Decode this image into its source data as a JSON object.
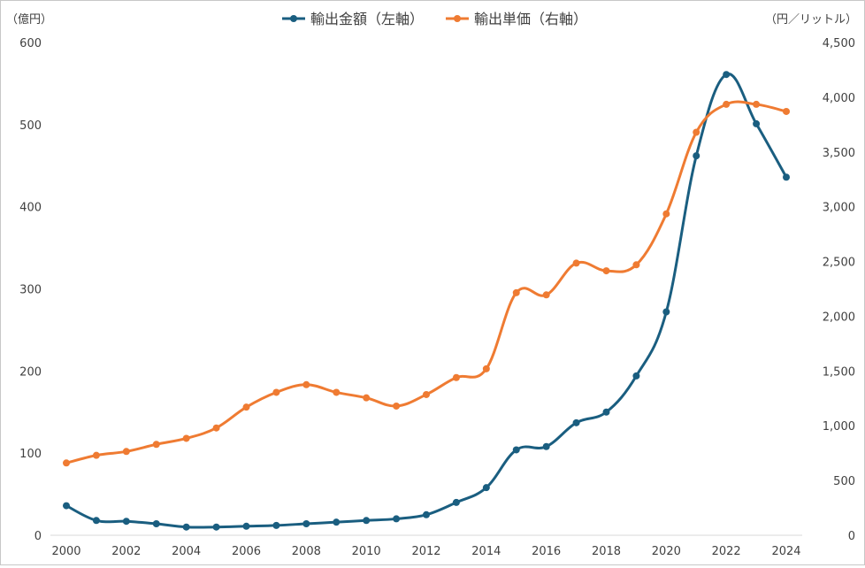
{
  "chart_data": {
    "type": "line",
    "title": "",
    "legend_position": "top",
    "left_axis_label": "（億円）",
    "right_axis_label": "（円／リットル）",
    "x": [
      "2000",
      "2001",
      "2002",
      "2003",
      "2004",
      "2005",
      "2006",
      "2007",
      "2008",
      "2009",
      "2010",
      "2011",
      "2012",
      "2013",
      "2014",
      "2015",
      "2016",
      "2017",
      "2018",
      "2019",
      "2020",
      "2021",
      "2022",
      "2023",
      "2024"
    ],
    "x_tick_labels": [
      "2000",
      "2002",
      "2004",
      "2006",
      "2008",
      "2010",
      "2012",
      "2014",
      "2016",
      "2018",
      "2020",
      "2022",
      "2024"
    ],
    "y_left": {
      "ylim": [
        0,
        600
      ],
      "ticks": [
        "0",
        "100",
        "200",
        "300",
        "400",
        "500",
        "600"
      ]
    },
    "y_right": {
      "ylim": [
        0,
        4500
      ],
      "ticks": [
        "0",
        "500",
        "1,000",
        "1,500",
        "2,000",
        "2,500",
        "3,000",
        "3,500",
        "4,000",
        "4,500"
      ]
    },
    "series": [
      {
        "name": "輸出金額（左軸）",
        "axis": "left",
        "color": "#1a5e80",
        "values": [
          36,
          18,
          17,
          14,
          10,
          10,
          11,
          12,
          14,
          16,
          18,
          20,
          25,
          40,
          58,
          104,
          108,
          137,
          150,
          194,
          272,
          462,
          561,
          501,
          436
        ]
      },
      {
        "name": "輸出単価（右軸）",
        "axis": "right",
        "color": "#ef7b32",
        "values": [
          660,
          730,
          765,
          830,
          885,
          980,
          1170,
          1305,
          1375,
          1305,
          1255,
          1180,
          1285,
          1440,
          1520,
          2215,
          2195,
          2485,
          2415,
          2470,
          2935,
          3680,
          3935,
          3935,
          3870
        ]
      }
    ]
  }
}
